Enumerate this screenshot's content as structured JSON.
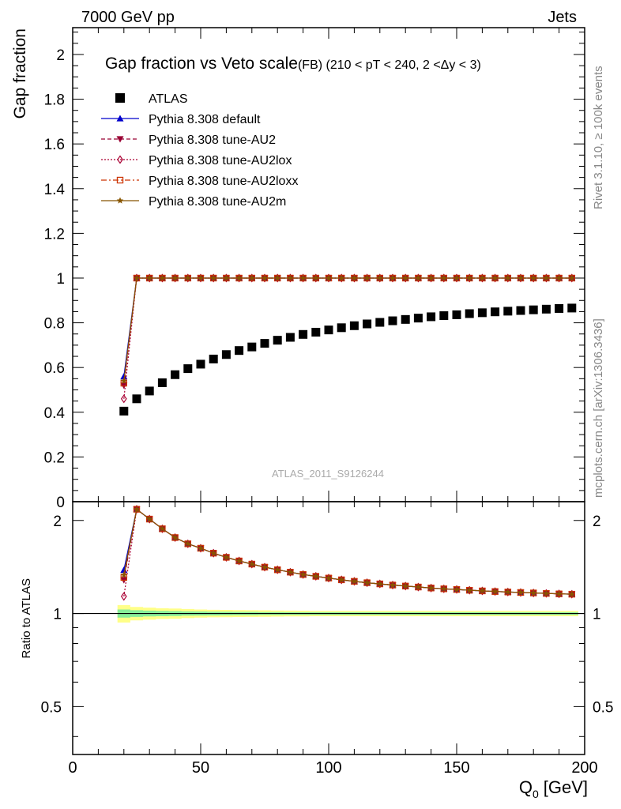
{
  "header": {
    "left": "7000 GeV pp",
    "right": "Jets"
  },
  "side_labels": {
    "rivet": "Rivet 3.1.10, ≥ 100k events",
    "mcplots": "mcplots.cern.ch [arXiv:1306.3436]"
  },
  "chart_data": {
    "type": "scatter",
    "title": "Gap fraction vs Veto scale",
    "subtitle": "(FB) (210 < pT < 240, 2 <Δy < 3)",
    "watermark": "ATLAS_2011_S9126244",
    "xlabel": "Q",
    "xlabel_sub": "0",
    "xlabel_unit": "[GeV]",
    "xlim": [
      0,
      200
    ],
    "x_ticks": [
      "0",
      "50",
      "100",
      "150",
      "200"
    ],
    "upper": {
      "ylabel": "Gap fraction",
      "ylim": [
        0,
        2.12
      ],
      "y_ticks": [
        "0",
        "0.2",
        "0.4",
        "0.6",
        "0.8",
        "1",
        "1.2",
        "1.4",
        "1.6",
        "1.8",
        "2"
      ]
    },
    "lower": {
      "ylabel": "Ratio to ATLAS",
      "ylim": [
        0.35,
        2.3
      ],
      "y_ticks": [
        "0.5",
        "1",
        "2"
      ]
    },
    "legend_placement": "top-left",
    "x": [
      20,
      25,
      30,
      35,
      40,
      45,
      50,
      55,
      60,
      65,
      70,
      75,
      80,
      85,
      90,
      95,
      100,
      105,
      110,
      115,
      120,
      125,
      130,
      135,
      140,
      145,
      150,
      155,
      160,
      165,
      170,
      175,
      180,
      185,
      190,
      195
    ],
    "series": [
      {
        "name": "ATLAS",
        "color": "#000000",
        "marker": "square-filled",
        "line": "none",
        "values": [
          0.405,
          0.46,
          0.495,
          0.532,
          0.568,
          0.595,
          0.615,
          0.638,
          0.658,
          0.676,
          0.692,
          0.708,
          0.722,
          0.735,
          0.748,
          0.758,
          0.768,
          0.778,
          0.787,
          0.795,
          0.802,
          0.809,
          0.815,
          0.821,
          0.827,
          0.832,
          0.836,
          0.841,
          0.845,
          0.849,
          0.852,
          0.855,
          0.858,
          0.861,
          0.864,
          0.866
        ]
      },
      {
        "name": "Pythia 8.308 default",
        "color": "#0000cc",
        "marker": "triangle-up-filled",
        "line": "solid",
        "values": [
          0.56,
          1.0,
          1.0,
          1.0,
          1.0,
          1.0,
          1.0,
          1.0,
          1.0,
          1.0,
          1.0,
          1.0,
          1.0,
          1.0,
          1.0,
          1.0,
          1.0,
          1.0,
          1.0,
          1.0,
          1.0,
          1.0,
          1.0,
          1.0,
          1.0,
          1.0,
          1.0,
          1.0,
          1.0,
          1.0,
          1.0,
          1.0,
          1.0,
          1.0,
          1.0,
          1.0
        ]
      },
      {
        "name": "Pythia 8.308 tune-AU2",
        "color": "#990033",
        "marker": "triangle-down-filled",
        "line": "dashed",
        "values": [
          0.52,
          1.0,
          1.0,
          1.0,
          1.0,
          1.0,
          1.0,
          1.0,
          1.0,
          1.0,
          1.0,
          1.0,
          1.0,
          1.0,
          1.0,
          1.0,
          1.0,
          1.0,
          1.0,
          1.0,
          1.0,
          1.0,
          1.0,
          1.0,
          1.0,
          1.0,
          1.0,
          1.0,
          1.0,
          1.0,
          1.0,
          1.0,
          1.0,
          1.0,
          1.0,
          1.0
        ]
      },
      {
        "name": "Pythia 8.308 tune-AU2lox",
        "color": "#aa0033",
        "marker": "diamond-open",
        "line": "dotted",
        "values": [
          0.46,
          1.0,
          1.0,
          1.0,
          1.0,
          1.0,
          1.0,
          1.0,
          1.0,
          1.0,
          1.0,
          1.0,
          1.0,
          1.0,
          1.0,
          1.0,
          1.0,
          1.0,
          1.0,
          1.0,
          1.0,
          1.0,
          1.0,
          1.0,
          1.0,
          1.0,
          1.0,
          1.0,
          1.0,
          1.0,
          1.0,
          1.0,
          1.0,
          1.0,
          1.0,
          1.0
        ]
      },
      {
        "name": "Pythia 8.308 tune-AU2loxx",
        "color": "#cc3300",
        "marker": "square-open",
        "line": "dashdot",
        "values": [
          0.53,
          1.0,
          1.0,
          1.0,
          1.0,
          1.0,
          1.0,
          1.0,
          1.0,
          1.0,
          1.0,
          1.0,
          1.0,
          1.0,
          1.0,
          1.0,
          1.0,
          1.0,
          1.0,
          1.0,
          1.0,
          1.0,
          1.0,
          1.0,
          1.0,
          1.0,
          1.0,
          1.0,
          1.0,
          1.0,
          1.0,
          1.0,
          1.0,
          1.0,
          1.0,
          1.0
        ]
      },
      {
        "name": "Pythia 8.308 tune-AU2m",
        "color": "#885500",
        "marker": "star-filled",
        "line": "solid",
        "values": [
          0.54,
          1.0,
          1.0,
          1.0,
          1.0,
          1.0,
          1.0,
          1.0,
          1.0,
          1.0,
          1.0,
          1.0,
          1.0,
          1.0,
          1.0,
          1.0,
          1.0,
          1.0,
          1.0,
          1.0,
          1.0,
          1.0,
          1.0,
          1.0,
          1.0,
          1.0,
          1.0,
          1.0,
          1.0,
          1.0,
          1.0,
          1.0,
          1.0,
          1.0,
          1.0,
          1.0
        ]
      }
    ],
    "ratio_band": {
      "yellow_halfwidth": [
        0.065,
        0.05,
        0.045,
        0.04,
        0.038,
        0.034,
        0.03,
        0.028,
        0.027,
        0.026,
        0.025,
        0.024,
        0.023,
        0.022,
        0.021,
        0.02,
        0.02,
        0.02,
        0.02,
        0.02,
        0.02,
        0.02,
        0.02,
        0.02,
        0.02,
        0.02,
        0.02,
        0.02,
        0.02,
        0.02,
        0.02,
        0.02,
        0.02,
        0.02,
        0.02,
        0.02
      ],
      "green_halfwidth": [
        0.03,
        0.025,
        0.022,
        0.02,
        0.018,
        0.016,
        0.015,
        0.014,
        0.013,
        0.012,
        0.012,
        0.011,
        0.011,
        0.01,
        0.01,
        0.01,
        0.01,
        0.01,
        0.01,
        0.01,
        0.01,
        0.01,
        0.01,
        0.01,
        0.01,
        0.01,
        0.01,
        0.01,
        0.01,
        0.01,
        0.01,
        0.01,
        0.01,
        0.01,
        0.01,
        0.01
      ],
      "yellow_color": "#ffff88",
      "green_color": "#88ee99"
    }
  }
}
